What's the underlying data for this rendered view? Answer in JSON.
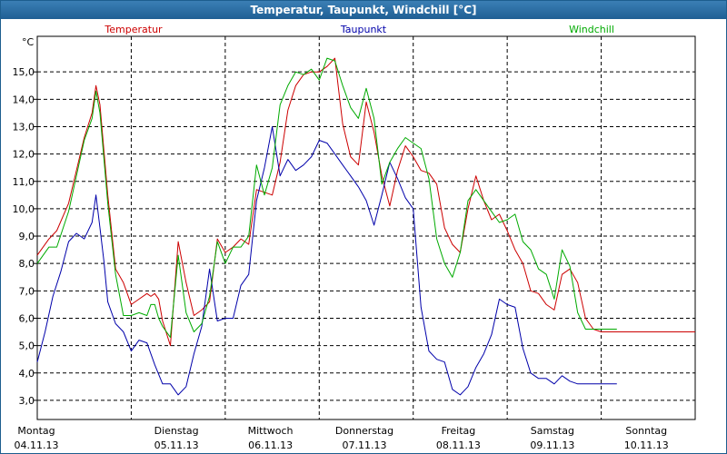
{
  "title": "Temperatur, Taupunkt, Windchill [°C]",
  "chart_data": {
    "type": "line",
    "ylabel": "°C",
    "ylim": [
      2.3,
      16.3
    ],
    "xlim": [
      0,
      168
    ],
    "yticks": [
      "3,0",
      "4,0",
      "5,0",
      "6,0",
      "7,0",
      "8,0",
      "9,0",
      "10,0",
      "11,0",
      "12,0",
      "13,0",
      "14,0",
      "15,0"
    ],
    "ytick_values": [
      3,
      4,
      5,
      6,
      7,
      8,
      9,
      10,
      11,
      12,
      13,
      14,
      15
    ],
    "days": [
      {
        "name": "Montag",
        "date": "04.11.13"
      },
      {
        "name": "Dienstag",
        "date": "05.11.13"
      },
      {
        "name": "Mittwoch",
        "date": "06.11.13"
      },
      {
        "name": "Donnerstag",
        "date": "07.11.13"
      },
      {
        "name": "Freitag",
        "date": "08.11.13"
      },
      {
        "name": "Samstag",
        "date": "09.11.13"
      },
      {
        "name": "Sonntag",
        "date": "10.11.13"
      }
    ],
    "grid": true,
    "legend_position": "top",
    "series": [
      {
        "name": "Temperatur",
        "color": "#cc0000",
        "x": [
          0,
          3,
          5,
          8,
          10,
          12,
          14,
          15,
          16,
          18,
          20,
          22,
          24,
          26,
          28,
          29,
          30,
          31,
          32,
          34,
          36,
          38,
          40,
          42,
          44,
          46,
          48,
          50,
          52,
          54,
          56,
          58,
          60,
          62,
          64,
          66,
          68,
          70,
          72,
          74,
          76,
          78,
          80,
          82,
          84,
          86,
          88,
          90,
          92,
          94,
          96,
          98,
          100,
          102,
          104,
          106,
          108,
          110,
          112,
          114,
          116,
          118,
          120,
          122,
          124,
          126,
          128,
          130,
          132,
          134,
          136,
          138,
          140,
          142,
          144,
          146,
          148,
          150,
          152,
          154,
          156,
          158,
          160,
          162,
          164,
          166,
          168
        ],
        "y": [
          8.3,
          8.9,
          9.2,
          10.2,
          11.4,
          12.6,
          13.5,
          14.5,
          13.8,
          10.5,
          7.8,
          7.3,
          6.5,
          6.7,
          6.9,
          6.8,
          6.9,
          6.7,
          5.9,
          5.0,
          8.8,
          7.3,
          6.1,
          6.3,
          6.6,
          8.9,
          8.4,
          8.6,
          8.9,
          8.7,
          10.7,
          10.6,
          10.5,
          11.7,
          13.6,
          14.5,
          14.9,
          15.0,
          15.0,
          15.2,
          15.5,
          13.1,
          11.9,
          11.6,
          13.9,
          12.8,
          11.2,
          10.1,
          11.4,
          12.3,
          11.9,
          11.4,
          11.3,
          10.9,
          9.3,
          8.7,
          8.4,
          10.0,
          11.2,
          10.3,
          9.6,
          9.8,
          9.2,
          8.5,
          8.0,
          7.0,
          6.9,
          6.5,
          6.3,
          7.6,
          7.8,
          7.3,
          6.0,
          5.6,
          5.5,
          5.5,
          5.5,
          5.5,
          5.5,
          5.5,
          5.5,
          5.5,
          5.5,
          5.5,
          5.5,
          5.5,
          5.5
        ]
      },
      {
        "name": "Taupunkt",
        "color": "#0000aa",
        "x": [
          0,
          2,
          4,
          6,
          8,
          10,
          12,
          14,
          15,
          16,
          17,
          18,
          20,
          22,
          24,
          26,
          28,
          30,
          32,
          34,
          36,
          38,
          40,
          42,
          44,
          46,
          48,
          50,
          52,
          54,
          56,
          58,
          60,
          62,
          64,
          66,
          68,
          70,
          72,
          74,
          76,
          78,
          80,
          82,
          84,
          86,
          88,
          90,
          92,
          94,
          96,
          98,
          100,
          102,
          104,
          106,
          108,
          110,
          112,
          114,
          116,
          118,
          120,
          122,
          124,
          126,
          128,
          130,
          132,
          134,
          136,
          138,
          140,
          142,
          144,
          146,
          148
        ],
        "y": [
          4.4,
          5.5,
          6.8,
          7.7,
          8.8,
          9.1,
          8.9,
          9.5,
          10.5,
          9.3,
          8.1,
          6.6,
          5.8,
          5.5,
          4.8,
          5.2,
          5.1,
          4.3,
          3.6,
          3.6,
          3.2,
          3.5,
          4.7,
          5.7,
          7.8,
          5.9,
          6.0,
          6.0,
          7.2,
          7.6,
          10.3,
          11.5,
          13.0,
          11.2,
          11.8,
          11.4,
          11.6,
          11.9,
          12.5,
          12.4,
          12.0,
          11.6,
          11.2,
          10.8,
          10.3,
          9.4,
          10.5,
          11.7,
          11.1,
          10.4,
          10.0,
          6.4,
          4.8,
          4.5,
          4.4,
          3.4,
          3.2,
          3.5,
          4.2,
          4.7,
          5.4,
          6.7,
          6.5,
          6.4,
          4.9,
          4.0,
          3.8,
          3.8,
          3.6,
          3.9,
          3.7,
          3.6,
          3.6,
          3.6,
          3.6,
          3.6,
          3.6
        ]
      },
      {
        "name": "Windchill",
        "color": "#00aa00",
        "x": [
          0,
          3,
          5,
          8,
          10,
          12,
          14,
          15,
          16,
          18,
          20,
          22,
          24,
          26,
          28,
          29,
          30,
          31,
          32,
          34,
          36,
          38,
          40,
          42,
          44,
          46,
          48,
          50,
          52,
          54,
          56,
          58,
          60,
          62,
          64,
          66,
          68,
          70,
          72,
          74,
          76,
          78,
          80,
          82,
          84,
          86,
          88,
          90,
          92,
          94,
          96,
          98,
          100,
          102,
          104,
          106,
          108,
          110,
          112,
          114,
          116,
          118,
          120,
          122,
          124,
          126,
          128,
          130,
          132,
          134,
          136,
          138,
          140,
          142,
          144,
          146,
          148
        ],
        "y": [
          8.0,
          8.6,
          8.6,
          9.9,
          11.2,
          12.5,
          13.3,
          14.3,
          13.5,
          10.2,
          7.6,
          6.1,
          6.1,
          6.2,
          6.1,
          6.5,
          6.5,
          6.0,
          5.7,
          5.3,
          8.3,
          6.2,
          5.5,
          5.8,
          6.8,
          8.8,
          8.0,
          8.6,
          8.6,
          9.0,
          11.6,
          10.5,
          11.5,
          13.8,
          14.5,
          15.0,
          14.9,
          15.1,
          14.7,
          15.5,
          15.4,
          14.5,
          13.7,
          13.3,
          14.4,
          13.3,
          10.9,
          11.7,
          12.2,
          12.6,
          12.4,
          12.2,
          11.1,
          8.9,
          8.0,
          7.5,
          8.4,
          10.3,
          10.7,
          10.3,
          9.9,
          9.5,
          9.6,
          9.8,
          8.8,
          8.5,
          7.8,
          7.6,
          6.7,
          8.5,
          7.9,
          6.2,
          5.6,
          5.6,
          5.6,
          5.6,
          5.6
        ]
      }
    ]
  }
}
